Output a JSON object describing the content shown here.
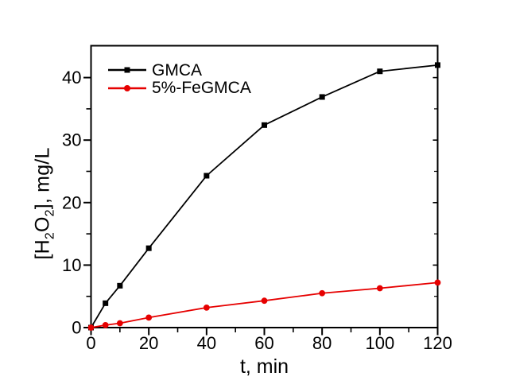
{
  "figure": {
    "background": "#ffffff",
    "axis_color": "#000000",
    "text_color": "#000000"
  },
  "chart_data": {
    "type": "line",
    "title": "",
    "xlabel": "t, min",
    "ylabel": "[H₂O₂], mg/L",
    "ylabel_parts": {
      "p1": "[H",
      "p2": "2",
      "p3": "O",
      "p4": "2",
      "p5": "], mg/L"
    },
    "x": [
      0,
      5,
      10,
      20,
      40,
      60,
      80,
      100,
      120
    ],
    "series": [
      {
        "name": "GMCA",
        "color": "#000000",
        "marker": "square",
        "values": [
          0,
          3.9,
          6.7,
          12.7,
          24.3,
          32.4,
          36.9,
          41.0,
          42.0
        ]
      },
      {
        "name": "5%-FeGMCA",
        "color": "#e60000",
        "marker": "circle",
        "values": [
          0,
          0.4,
          0.7,
          1.6,
          3.2,
          4.3,
          5.5,
          6.3,
          7.2
        ]
      }
    ],
    "xlim": [
      0,
      120
    ],
    "ylim": [
      0,
      45.1
    ],
    "x_major_ticks": [
      0,
      20,
      40,
      60,
      80,
      100,
      120
    ],
    "x_minor_ticks": [
      10,
      30,
      50,
      70,
      90,
      110
    ],
    "y_major_ticks": [
      0,
      10,
      20,
      30,
      40
    ],
    "y_minor_ticks": [
      5,
      15,
      25,
      35
    ],
    "grid": false,
    "legend_position": "top-left-inside"
  }
}
